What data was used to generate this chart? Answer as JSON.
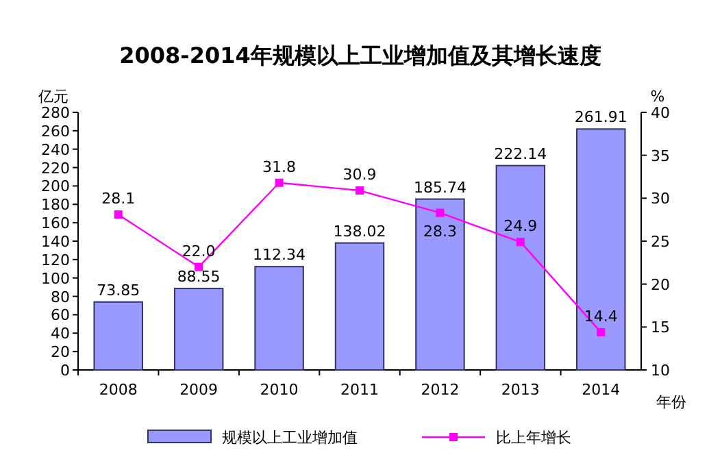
{
  "chart_data": {
    "type": "bar",
    "title": "2008-2014年规模以上工业增加值及其增长速度",
    "xlabel": "年份",
    "ylabel": "亿元",
    "y2label": "%",
    "categories": [
      "2008",
      "2009",
      "2010",
      "2011",
      "2012",
      "2013",
      "2014"
    ],
    "series": [
      {
        "name": "规模以上工业增加值",
        "color": "#9999ff",
        "values": [
          73.85,
          88.55,
          112.34,
          138.02,
          185.74,
          222.14,
          261.91
        ],
        "value_labels": [
          "73.85",
          "88.55",
          "112.34",
          "138.02",
          "185.74",
          "222.14",
          "261.91"
        ]
      },
      {
        "name": "比上年增长",
        "type": "line",
        "axis": "y2",
        "color": "#ff00ff",
        "marker": "square",
        "values": [
          28.1,
          22.0,
          31.8,
          30.9,
          28.3,
          24.9,
          14.4
        ],
        "value_labels": [
          "28.1",
          "22.0",
          "31.8",
          "30.9",
          "28.3",
          "24.9",
          "14.4"
        ]
      }
    ],
    "ylim": [
      0,
      280
    ],
    "yticks": [
      0,
      20,
      40,
      60,
      80,
      100,
      120,
      140,
      160,
      180,
      200,
      220,
      240,
      260,
      280
    ],
    "y2lim": [
      10,
      40
    ],
    "y2ticks": [
      10,
      15,
      20,
      25,
      30,
      35,
      40
    ],
    "legend": "bottom"
  }
}
